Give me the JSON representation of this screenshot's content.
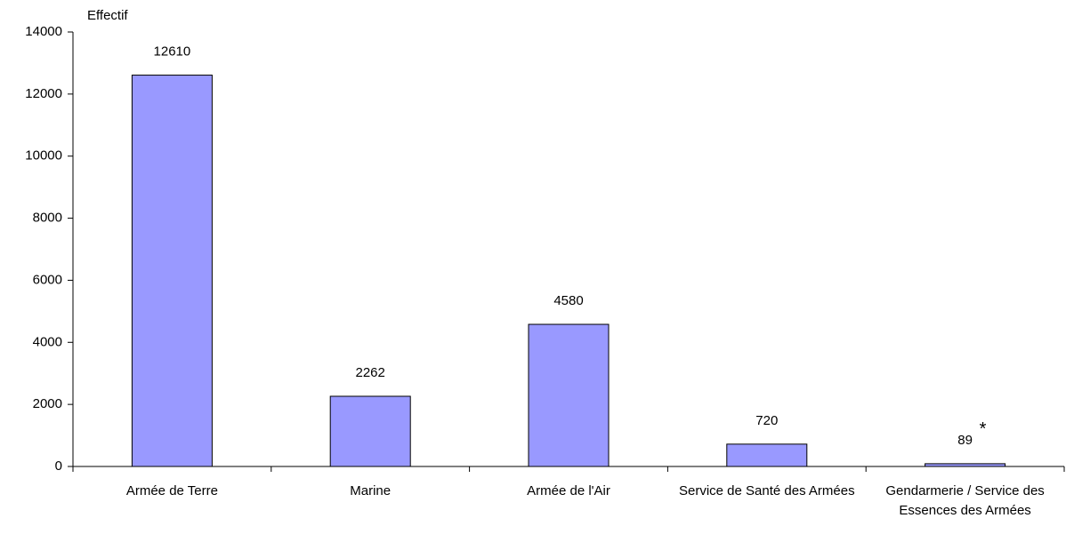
{
  "chart_data": {
    "type": "bar",
    "y_label": "Effectif",
    "categories": [
      "Armée de Terre",
      "Marine",
      "Armée de l'Air",
      "Service de Santé des Armées",
      "Gendarmerie / Service des Essences des Armées"
    ],
    "values": [
      12610,
      2262,
      4580,
      720,
      89
    ],
    "color": "#9999ff",
    "ylim": [
      0,
      14000
    ],
    "yticks": [
      0,
      2000,
      4000,
      6000,
      8000,
      10000,
      12000,
      14000
    ],
    "grid": false,
    "annotation": "*"
  }
}
